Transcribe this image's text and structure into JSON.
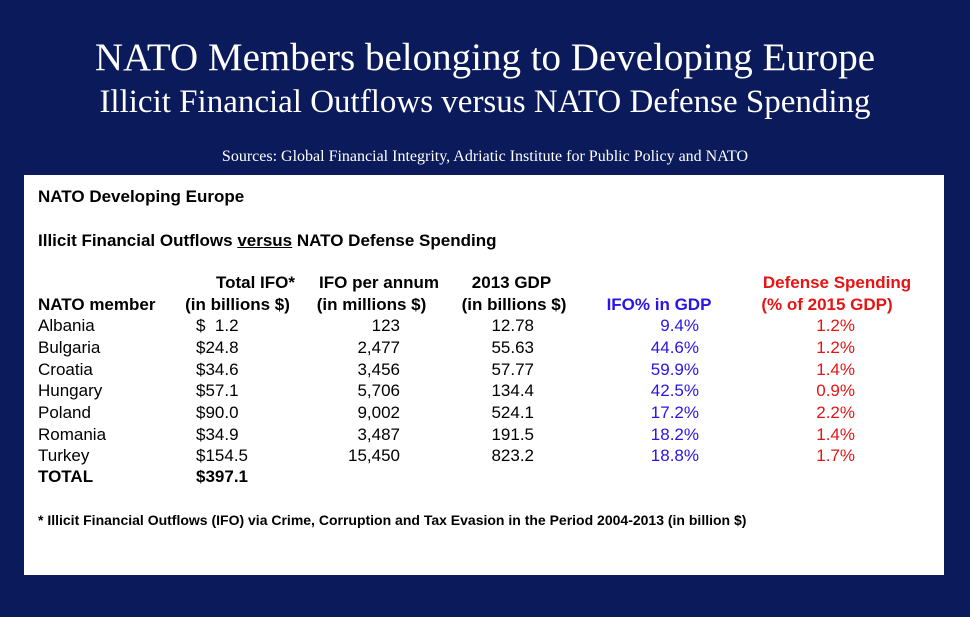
{
  "title_line1": "NATO Members belonging to Developing Europe",
  "title_line2": "Illicit Financial Outflows versus NATO Defense Spending",
  "sources": "Sources: Global Financial Integrity, Adriatic Institute for Public Policy and NATO",
  "panel": {
    "heading": "NATO Developing Europe",
    "subheading_a": "Illicit Financial Outflows ",
    "subheading_b": "versus",
    "subheading_c": " NATO Defense Spending",
    "headers": {
      "member": "NATO member",
      "ifo_l1": "Total IFO*",
      "ifo_l2": "(in billions $)",
      "annum_l1": "IFO per annum",
      "annum_l2": "(in millions $)",
      "gdp_l1": "2013 GDP",
      "gdp_l2": "(in billions $)",
      "pct": "IFO% in GDP",
      "def_l1": "Defense Spending",
      "def_l2": "(% of 2015 GDP)"
    },
    "rows": [
      {
        "member": "Albania",
        "ifo": "$  1.2",
        "annum": "123",
        "gdp": "12.78",
        "pct": "9.4%",
        "def": "1.2%"
      },
      {
        "member": "Bulgaria",
        "ifo": "$24.8",
        "annum": "2,477",
        "gdp": "55.63",
        "pct": "44.6%",
        "def": "1.2%"
      },
      {
        "member": "Croatia",
        "ifo": "$34.6",
        "annum": "3,456",
        "gdp": "57.77",
        "pct": "59.9%",
        "def": "1.4%"
      },
      {
        "member": "Hungary",
        "ifo": "$57.1",
        "annum": "5,706",
        "gdp": "134.4",
        "pct": "42.5%",
        "def": "0.9%"
      },
      {
        "member": "Poland",
        "ifo": "$90.0",
        "annum": "9,002",
        "gdp": "524.1",
        "pct": "17.2%",
        "def": "2.2%"
      },
      {
        "member": "Romania",
        "ifo": "$34.9",
        "annum": "3,487",
        "gdp": "191.5",
        "pct": "18.2%",
        "def": "1.4%"
      },
      {
        "member": "Turkey",
        "ifo": "$154.5",
        "annum": "15,450",
        "gdp": "823.2",
        "pct": "18.8%",
        "def": "1.7%"
      }
    ],
    "total_label": "TOTAL",
    "total_value": "$397.1",
    "footnote": "* Illicit Financial Outflows (IFO) via Crime, Corruption and Tax Evasion in the Period 2004-2013 (in billion $)"
  },
  "colors": {
    "background": "#0b1a5a",
    "ifo_pct": "#2a14e6",
    "defense": "#e61414"
  }
}
